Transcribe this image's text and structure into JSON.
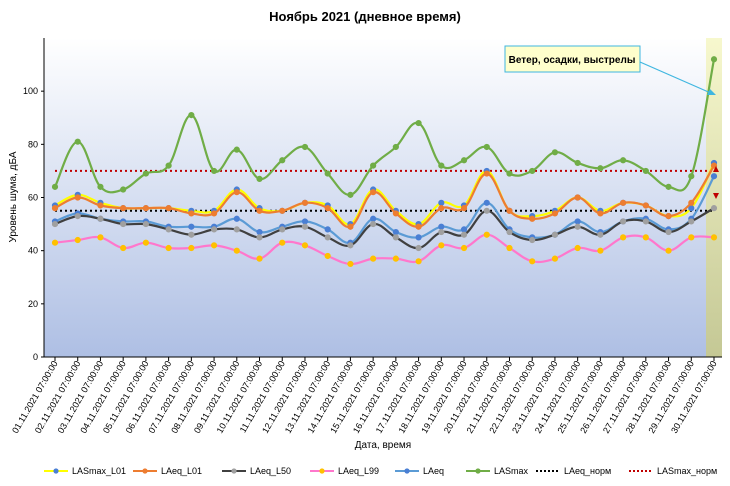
{
  "chart_data": {
    "type": "line",
    "title": "Ноябрь 2021 (дневное время)",
    "xlabel": "Дата, время",
    "ylabel": "Уровень шума, дБА",
    "ylim": [
      0,
      120
    ],
    "yticks": [
      0,
      20,
      40,
      60,
      80,
      100
    ],
    "grid": false,
    "legend_position": "bottom",
    "categories": [
      "01.11.2021 07:00:00",
      "02.11.2021 07:00:00",
      "03.11.2021 07:00:00",
      "04.11.2021 07:00:00",
      "05.11.2021 07:00:00",
      "06.11.2021 07:00:00",
      "07.11.2021 07:00:00",
      "08.11.2021 07:00:00",
      "09.11.2021 07:00:00",
      "10.11.2021 07:00:00",
      "11.11.2021 07:00:00",
      "12.11.2021 07:00:00",
      "13.11.2021 07:00:00",
      "14.11.2021 07:00:00",
      "15.11.2021 07:00:00",
      "16.11.2021 07:00:00",
      "17.11.2021 07:00:00",
      "18.11.2021 07:00:00",
      "19.11.2021 07:00:00",
      "20.11.2021 07:00:00",
      "21.11.2021 07:00:00",
      "22.11.2021 07:00:00",
      "23.11.2021 07:00:00",
      "24.11.2021 07:00:00",
      "25.11.2021 07:00:00",
      "26.11.2021 07:00:00",
      "27.11.2021 07:00:00",
      "28.11.2021 07:00:00",
      "29.11.2021 07:00:00",
      "30.11.2021 07:00:00"
    ],
    "series": [
      {
        "name": "LASmax_L01",
        "color": "#ffff00",
        "marker": "#4a7fd4",
        "values": [
          57,
          61,
          58,
          56,
          56,
          56,
          55,
          55,
          63,
          56,
          55,
          58,
          57,
          50,
          63,
          55,
          50,
          58,
          57,
          70,
          55,
          53,
          55,
          60,
          55,
          58,
          57,
          53,
          56,
          73
        ]
      },
      {
        "name": "LAeq_L01",
        "color": "#ed7d31",
        "marker": "#ed7d31",
        "values": [
          56,
          60,
          57,
          56,
          56,
          56,
          54,
          54,
          62,
          55,
          55,
          58,
          56,
          49,
          62,
          54,
          49,
          56,
          56,
          69,
          55,
          52,
          54,
          60,
          54,
          58,
          57,
          53,
          58,
          72
        ]
      },
      {
        "name": "LAeq_L50",
        "color": "#404040",
        "marker": "#a0a0a0",
        "values": [
          50,
          53,
          52,
          50,
          50,
          48,
          46,
          48,
          48,
          45,
          48,
          49,
          45,
          42,
          50,
          45,
          41,
          47,
          46,
          55,
          47,
          44,
          46,
          49,
          46,
          51,
          51,
          47,
          51,
          56
        ]
      },
      {
        "name": "LAeq_L99",
        "color": "#ff77cc",
        "marker": "#ffc000",
        "values": [
          43,
          44,
          45,
          41,
          43,
          41,
          41,
          42,
          40,
          37,
          43,
          42,
          38,
          35,
          37,
          37,
          36,
          42,
          41,
          46,
          41,
          36,
          37,
          41,
          40,
          45,
          45,
          40,
          45,
          45
        ]
      },
      {
        "name": "LAeq",
        "color": "#5b9bd5",
        "marker": "#4a7fd4",
        "values": [
          51,
          54,
          52,
          51,
          51,
          49,
          49,
          49,
          52,
          47,
          49,
          51,
          48,
          43,
          52,
          47,
          45,
          49,
          48,
          58,
          48,
          45,
          46,
          51,
          47,
          51,
          52,
          48,
          52,
          68
        ]
      },
      {
        "name": "LASmax",
        "color": "#70ad47",
        "marker": "#70ad47",
        "values": [
          64,
          81,
          64,
          63,
          69,
          72,
          91,
          70,
          78,
          67,
          74,
          79,
          69,
          61,
          72,
          79,
          88,
          72,
          74,
          79,
          69,
          70,
          77,
          73,
          71,
          74,
          70,
          64,
          68,
          112
        ]
      },
      {
        "name": "LAeq_норм",
        "color": "#000000",
        "dash": true,
        "values": [
          55,
          55,
          55,
          55,
          55,
          55,
          55,
          55,
          55,
          55,
          55,
          55,
          55,
          55,
          55,
          55,
          55,
          55,
          55,
          55,
          55,
          55,
          55,
          55,
          55,
          55,
          55,
          55,
          55,
          55
        ]
      },
      {
        "name": "LASmax_норм",
        "color": "#c00000",
        "dash": true,
        "values": [
          70,
          70,
          70,
          70,
          70,
          70,
          70,
          70,
          70,
          70,
          70,
          70,
          70,
          70,
          70,
          70,
          70,
          70,
          70,
          70,
          70,
          70,
          70,
          70,
          70,
          70,
          70,
          70,
          70,
          70
        ]
      }
    ],
    "annotation": {
      "text": "Ветер, осадки, выстрелы",
      "target_index": 29,
      "target_value": 95
    }
  }
}
